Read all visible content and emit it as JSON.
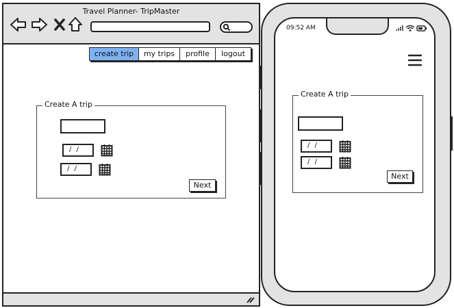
{
  "browser": {
    "title": "Travel Planner- TripMaster",
    "nav": {
      "back_icon": "arrow-left-icon",
      "forward_icon": "arrow-right-icon",
      "close_icon": "x-icon",
      "home_icon": "home-icon"
    },
    "search_icon": "magnifier-icon"
  },
  "menu": {
    "items": [
      {
        "label": "create trip",
        "active": true
      },
      {
        "label": "my trips"
      },
      {
        "label": "profile"
      },
      {
        "label": "logout"
      }
    ],
    "active_color": "#7fb2f0"
  },
  "form": {
    "group_label": "Create A trip",
    "start_date": "/ /",
    "end_date": "/ /",
    "calendar_icon": "calendar-icon",
    "next_label": "Next"
  },
  "phone": {
    "time": "09:52 AM",
    "status_icons": [
      "signal-icon",
      "wifi-icon",
      "battery-icon"
    ],
    "menu_icon": "hamburger-icon"
  }
}
